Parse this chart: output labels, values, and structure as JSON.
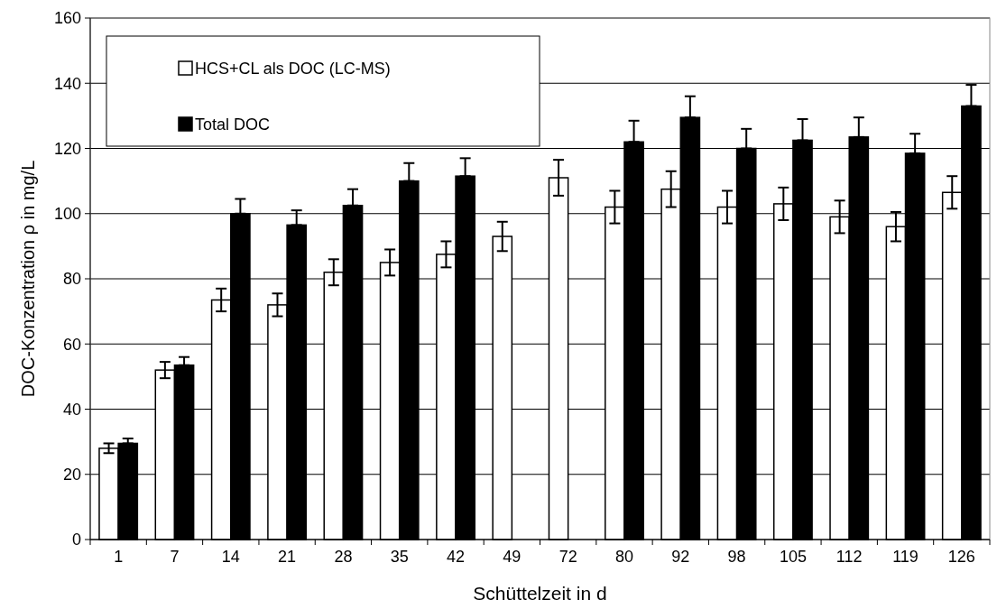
{
  "chart_data": {
    "type": "bar",
    "xlabel": "Schüttelzeit  in d",
    "ylabel": "DOC-Konzentration  ρ in mg/L",
    "categories": [
      "1",
      "7",
      "14",
      "21",
      "28",
      "35",
      "42",
      "49",
      "72",
      "80",
      "92",
      "98",
      "105",
      "112",
      "119",
      "126"
    ],
    "series": [
      {
        "name": "HCS+CL als DOC  (LC-MS)",
        "color": "#ffffff",
        "values": [
          28,
          52,
          73.5,
          72,
          82,
          85,
          87.5,
          93,
          111,
          102,
          107.5,
          102,
          103,
          99,
          96,
          106.5
        ],
        "errors": [
          1.5,
          2.5,
          3.5,
          3.5,
          4,
          4,
          4,
          4.5,
          5.5,
          5,
          5.5,
          5,
          5,
          5,
          4.5,
          5
        ]
      },
      {
        "name": "Total DOC",
        "color": "#000000",
        "values": [
          29.5,
          53.5,
          100,
          96.5,
          102.5,
          110,
          111.5,
          null,
          null,
          122,
          129.5,
          120,
          122.5,
          123.5,
          118.5,
          133
        ],
        "errors": [
          [
            29.5,
            31
          ],
          [
            53.5,
            56
          ],
          [
            100,
            104.5
          ],
          [
            96.5,
            101
          ],
          [
            102.5,
            107.5
          ],
          [
            110,
            115.5
          ],
          [
            111.5,
            117
          ],
          null,
          null,
          [
            122,
            128.5
          ],
          [
            129.5,
            136
          ],
          [
            120,
            126
          ],
          [
            122.5,
            129
          ],
          [
            123.5,
            129.5
          ],
          [
            118.5,
            124.5
          ],
          [
            133,
            139.5
          ]
        ]
      }
    ],
    "ylim": [
      0,
      160
    ],
    "yticks": [
      0,
      20,
      40,
      60,
      80,
      100,
      120,
      140,
      160
    ],
    "grid": "y",
    "legend": "top left"
  }
}
